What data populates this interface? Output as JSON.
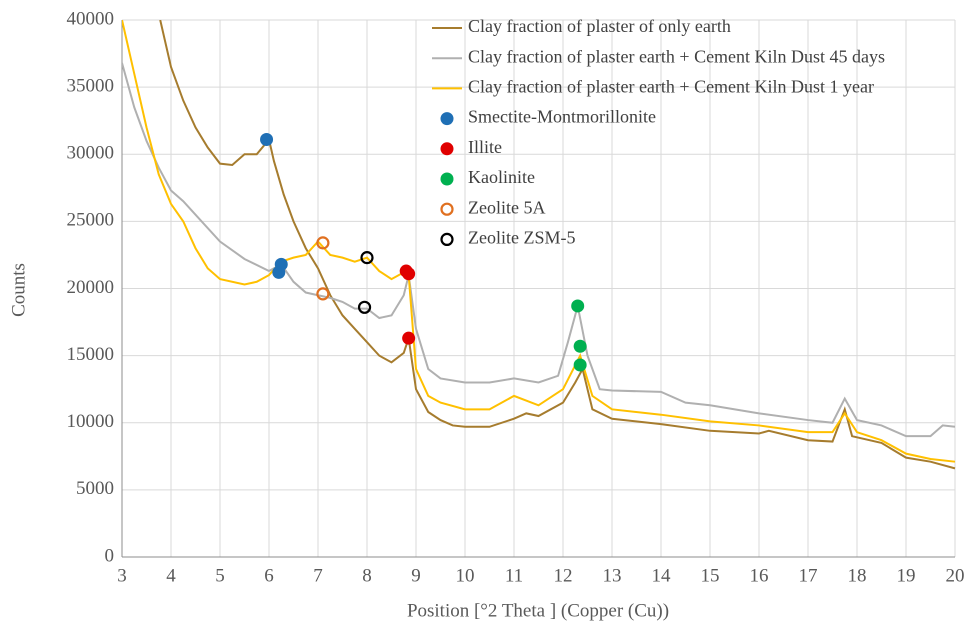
{
  "chart_data": {
    "type": "line",
    "xlabel": "Position [°2 Theta ] (Copper (Cu))",
    "ylabel": "Counts",
    "xlim": [
      3,
      20
    ],
    "ylim": [
      0,
      40000
    ],
    "xticks": [
      3,
      4,
      5,
      6,
      7,
      8,
      9,
      10,
      11,
      12,
      13,
      14,
      15,
      16,
      17,
      18,
      19,
      20
    ],
    "yticks": [
      0,
      5000,
      10000,
      15000,
      20000,
      25000,
      30000,
      35000,
      40000
    ],
    "grid": true,
    "legend": "upper right",
    "series": [
      {
        "name": "Clay fraction of plaster of only earth",
        "kind": "line",
        "color": "#a67c2e",
        "x": [
          3.78,
          4.0,
          4.25,
          4.5,
          4.75,
          5.0,
          5.25,
          5.5,
          5.75,
          6.0,
          6.1,
          6.3,
          6.5,
          6.75,
          7.0,
          7.25,
          7.5,
          7.75,
          8.0,
          8.25,
          8.5,
          8.75,
          8.85,
          9.0,
          9.25,
          9.5,
          9.75,
          10.0,
          10.5,
          11.0,
          11.25,
          11.5,
          12.0,
          12.25,
          12.4,
          12.6,
          13.0,
          14.0,
          15.0,
          16.0,
          16.2,
          17.0,
          17.5,
          17.75,
          17.9,
          18.5,
          19.0,
          19.5,
          20.0
        ],
        "values": [
          40000,
          36500,
          34000,
          32000,
          30500,
          29300,
          29200,
          30000,
          30000,
          31100,
          29500,
          27000,
          25000,
          23000,
          21500,
          19500,
          18000,
          17000,
          16000,
          15000,
          14500,
          15200,
          16300,
          12500,
          10800,
          10200,
          9800,
          9700,
          9700,
          10300,
          10700,
          10500,
          11500,
          13000,
          14000,
          11000,
          10300,
          9900,
          9400,
          9200,
          9400,
          8700,
          8600,
          11000,
          9000,
          8500,
          7400,
          7100,
          6600
        ]
      },
      {
        "name": "Clay fraction of plaster earth + Cement Kiln Dust 45 days",
        "kind": "line",
        "color": "#b0b0b0",
        "x": [
          3.0,
          3.25,
          3.5,
          3.75,
          4.0,
          4.25,
          4.5,
          5.0,
          5.5,
          6.0,
          6.25,
          6.5,
          6.75,
          7.0,
          7.25,
          7.5,
          7.75,
          8.0,
          8.25,
          8.5,
          8.75,
          8.85,
          9.0,
          9.25,
          9.5,
          10.0,
          10.5,
          11.0,
          11.5,
          11.9,
          12.1,
          12.3,
          12.5,
          12.75,
          13.0,
          14.0,
          14.5,
          15.0,
          16.0,
          17.0,
          17.5,
          17.75,
          18.0,
          18.5,
          19.0,
          19.5,
          19.75,
          20.0
        ],
        "values": [
          36800,
          33500,
          31000,
          29000,
          27300,
          26500,
          25500,
          23500,
          22200,
          21300,
          21800,
          20500,
          19700,
          19500,
          19300,
          19000,
          18500,
          18500,
          17800,
          18000,
          19500,
          21000,
          17000,
          14000,
          13300,
          13000,
          13000,
          13300,
          13000,
          13500,
          16000,
          18700,
          15000,
          12500,
          12400,
          12300,
          11500,
          11300,
          10700,
          10200,
          10000,
          11800,
          10200,
          9800,
          9000,
          9000,
          9800,
          9700
        ]
      },
      {
        "name": "Clay fraction of plaster earth + Cement Kiln Dust 1 year",
        "kind": "line",
        "color": "#ffc000",
        "x": [
          3.0,
          3.25,
          3.5,
          3.75,
          4.0,
          4.25,
          4.5,
          4.75,
          5.0,
          5.5,
          5.75,
          6.0,
          6.25,
          6.5,
          6.75,
          7.0,
          7.25,
          7.5,
          7.75,
          8.0,
          8.25,
          8.5,
          8.75,
          8.85,
          9.0,
          9.25,
          9.5,
          10.0,
          10.5,
          11.0,
          11.5,
          12.0,
          12.35,
          12.6,
          13.0,
          14.0,
          15.0,
          16.0,
          17.0,
          17.5,
          17.75,
          18.0,
          18.5,
          19.0,
          19.5,
          20.0
        ],
        "values": [
          40000,
          36000,
          32000,
          28500,
          26300,
          25000,
          23000,
          21500,
          20700,
          20300,
          20500,
          21000,
          22000,
          22300,
          22500,
          23500,
          22500,
          22300,
          22000,
          22300,
          21300,
          20700,
          21200,
          21000,
          14000,
          12000,
          11500,
          11000,
          11000,
          12000,
          11300,
          12500,
          15000,
          12000,
          11000,
          10600,
          10100,
          9800,
          9300,
          9300,
          10700,
          9300,
          8700,
          7700,
          7300,
          7100
        ]
      },
      {
        "name": "Smectite-Montmorillonite",
        "kind": "marker",
        "fill": true,
        "color": "#1f6fb5",
        "x": [
          5.95,
          6.2,
          6.25
        ],
        "values": [
          31100,
          21200,
          21800
        ]
      },
      {
        "name": "Illite",
        "kind": "marker",
        "fill": true,
        "color": "#e00000",
        "x": [
          8.8,
          8.85,
          8.85
        ],
        "values": [
          21300,
          21100,
          16300
        ]
      },
      {
        "name": "Kaolinite",
        "kind": "marker",
        "fill": true,
        "color": "#00b050",
        "x": [
          12.3,
          12.35,
          12.35
        ],
        "values": [
          18700,
          15700,
          14300
        ]
      },
      {
        "name": "Zeolite 5A",
        "kind": "marker",
        "fill": false,
        "color": "#e07020",
        "x": [
          7.1,
          7.1
        ],
        "values": [
          23400,
          19600
        ]
      },
      {
        "name": "Zeolite ZSM-5",
        "kind": "marker",
        "fill": false,
        "color": "#000000",
        "x": [
          8.0,
          7.95
        ],
        "values": [
          22300,
          18600
        ]
      }
    ]
  }
}
